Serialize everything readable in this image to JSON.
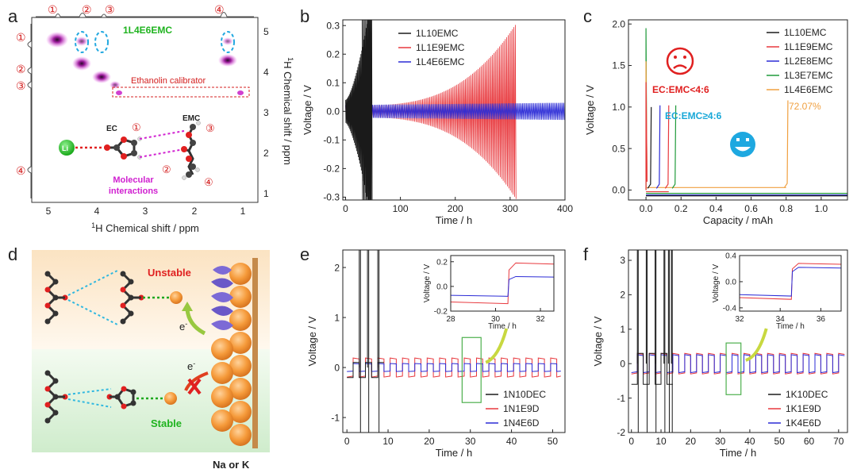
{
  "panels": {
    "a": {
      "letter": "a",
      "sample_label": "1L4E6EMC",
      "xlabel_prefix": "1",
      "xlabel_text": "H Chemical shift / ppm",
      "ylabel_prefix": "1",
      "ylabel_text": "H Chemical shift / ppm",
      "xticks": [
        "5",
        "4",
        "3",
        "2",
        "1"
      ],
      "yticks": [
        "5",
        "4",
        "3",
        "2",
        "1"
      ],
      "peak_numbers": [
        "①",
        "②",
        "③",
        "④"
      ],
      "calibrator_label": "Ethanolin calibrator",
      "ec_label": "EC",
      "emc_label": "EMC",
      "li_label": "Li",
      "interaction_label_1": "Molecular",
      "interaction_label_2": "interactions"
    },
    "b": {
      "letter": "b"
    },
    "c": {
      "letter": "c",
      "annotation_bad": "EC:EMC<4:6",
      "annotation_good": "EC:EMC≥4:6",
      "percent_label": "72.07%"
    },
    "d": {
      "letter": "d",
      "unstable_label": "Unstable",
      "stable_label": "Stable",
      "electron_label": "e",
      "electron_sup": "-",
      "metal_label": "Na or K"
    },
    "e": {
      "letter": "e"
    },
    "f": {
      "letter": "f"
    }
  },
  "colors": {
    "black_series": "#1a1a1a",
    "red_series": "#e8383d",
    "blue_series": "#2b2bd6",
    "green_series": "#1f9a3a",
    "orange_series": "#f0a040",
    "panel_label_green": "#1fb31f",
    "annotation_red": "#e02020",
    "annotation_cyan": "#18a8d8",
    "magenta": "#d020d0"
  },
  "chart_data": [
    {
      "id": "b",
      "type": "line",
      "xlabel": "Time / h",
      "ylabel": "Voltage / V",
      "xlim": [
        -5,
        400
      ],
      "ylim": [
        -0.31,
        0.32
      ],
      "xticks": [
        0,
        100,
        200,
        300,
        400
      ],
      "yticks": [
        -0.3,
        -0.2,
        -0.1,
        0.0,
        0.1,
        0.2,
        0.3
      ],
      "ytick_labels": [
        "-0.3",
        "-0.2",
        "-0.1",
        "0.0",
        "0.1",
        "0.2",
        "0.3"
      ],
      "legend": "top-right",
      "series": [
        {
          "name": "1L10EMC",
          "color": "#1a1a1a",
          "start_time": 0,
          "end_time": 48,
          "amplitude_start": 0.04,
          "amplitude_end": 0.4
        },
        {
          "name": "1L1E9EMC",
          "color": "#e8383d",
          "start_time": 0,
          "end_time": 312,
          "amplitude_start": 0.02,
          "amplitude_end": 0.31
        },
        {
          "name": "1L4E6EMC",
          "color": "#2b2bd6",
          "start_time": 0,
          "end_time": 400,
          "amplitude_start": 0.022,
          "amplitude_end": 0.03
        }
      ]
    },
    {
      "id": "c",
      "type": "line",
      "xlabel": "Capacity / mAh",
      "ylabel": "Voltage / V",
      "xlim": [
        -0.1,
        1.15
      ],
      "ylim": [
        -0.12,
        2.05
      ],
      "xticks": [
        0.0,
        0.2,
        0.4,
        0.6,
        0.8,
        1.0
      ],
      "xtick_labels": [
        "0.0",
        "0.2",
        "0.4",
        "0.6",
        "0.8",
        "1.0"
      ],
      "yticks": [
        0.0,
        0.5,
        1.0,
        1.5,
        2.0
      ],
      "ytick_labels": [
        "0.0",
        "0.5",
        "1.0",
        "1.5",
        "2.0"
      ],
      "legend": "top-right",
      "series": [
        {
          "name": "1L10EMC",
          "color": "#1a1a1a",
          "cutoff_capacity": 0.03,
          "peak_voltage": 1.0
        },
        {
          "name": "1L1E9EMC",
          "color": "#e8383d",
          "cutoff_capacity": 0.13,
          "peak_voltage": 1.02
        },
        {
          "name": "1L2E8EMC",
          "color": "#2b2bd6",
          "cutoff_capacity": 0.08,
          "peak_voltage": 1.02
        },
        {
          "name": "1L3E7EMC",
          "color": "#1f9a3a",
          "cutoff_capacity": 0.17,
          "peak_voltage": 1.02
        },
        {
          "name": "1L4E6EMC",
          "color": "#f0a040",
          "cutoff_capacity": 0.81,
          "peak_voltage": 1.08
        }
      ]
    },
    {
      "id": "e",
      "type": "line",
      "xlabel": "Time / h",
      "ylabel": "Voltage / V",
      "xlim": [
        -1,
        53
      ],
      "ylim": [
        -1.3,
        2.35
      ],
      "xticks": [
        0,
        10,
        20,
        30,
        40,
        50
      ],
      "yticks": [
        -1,
        0,
        1,
        2
      ],
      "legend": "bottom-right",
      "series": [
        {
          "name": "1N10DEC",
          "color": "#1a1a1a",
          "square_amplitude": 0.1,
          "stable_until": 8
        },
        {
          "name": "1N1E9D",
          "color": "#e8383d",
          "square_amplitude": 0.19
        },
        {
          "name": "1N4E6D",
          "color": "#2b2bd6",
          "square_amplitude": 0.08
        }
      ],
      "inset": {
        "xlabel": "Time / h",
        "ylabel": "Voltage / V",
        "xlim": [
          28,
          32.6
        ],
        "ylim": [
          -0.2,
          0.25
        ],
        "xticks": [
          28,
          30,
          32
        ],
        "yticks": [
          -0.2,
          0.0,
          0.2
        ],
        "ytick_labels": [
          "-0.2",
          "0.0",
          "0.2"
        ],
        "switch_time": 30.6,
        "red_low": -0.14,
        "red_high": 0.19,
        "blue_low": -0.08,
        "blue_high": 0.08
      }
    },
    {
      "id": "f",
      "type": "line",
      "xlabel": "Time / h",
      "ylabel": "Voltage / V",
      "xlim": [
        -1,
        73
      ],
      "ylim": [
        -2,
        3.3
      ],
      "xticks": [
        0,
        10,
        20,
        30,
        40,
        50,
        60,
        70
      ],
      "yticks": [
        -2,
        -1,
        0,
        1,
        2,
        3
      ],
      "legend": "bottom-right",
      "series": [
        {
          "name": "1K10DEC",
          "color": "#1a1a1a",
          "square_amplitude": 0.3,
          "stable_until": 14
        },
        {
          "name": "1K1E9D",
          "color": "#e8383d",
          "square_amplitude": 0.3
        },
        {
          "name": "1K4E6D",
          "color": "#2b2bd6",
          "square_amplitude": 0.26
        }
      ],
      "inset": {
        "xlabel": "Time / h",
        "ylabel": "Voltage / V",
        "xlim": [
          32,
          37
        ],
        "ylim": [
          -0.45,
          0.4
        ],
        "xticks": [
          32,
          34,
          36
        ],
        "yticks": [
          -0.4,
          0.0,
          0.4
        ],
        "ytick_labels": [
          "-0.4",
          "0.0",
          "0.4"
        ],
        "switch_time": 34.6,
        "red_low": -0.27,
        "red_high": 0.28,
        "blue_low": -0.22,
        "blue_high": 0.22
      }
    }
  ]
}
